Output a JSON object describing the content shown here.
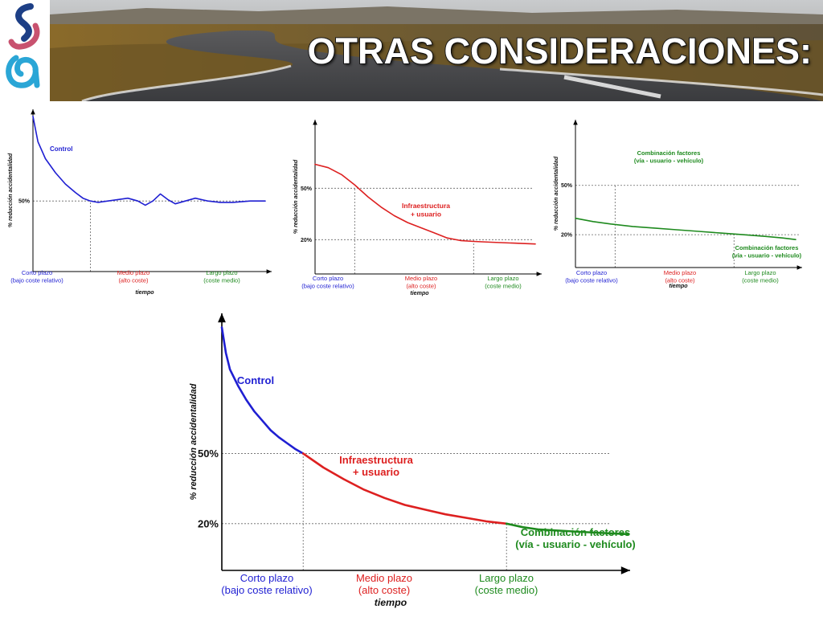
{
  "header": {
    "title": "OTRAS CONSIDERACIONES:",
    "logo_icon": "institution-logo-icon",
    "background": "road-landscape-photo"
  },
  "colors": {
    "blue": "#1f1fd2",
    "red": "#dd2020",
    "green": "#1e8a1e",
    "axis": "#000000",
    "grid": "#666666"
  },
  "chart_data": [
    {
      "type": "line",
      "ylabel": "% reducción accidentalidad",
      "xlabel": "tiempo",
      "yticks": [
        "50%"
      ],
      "categories": [
        {
          "lines": [
            "Corto plazo",
            "(bajo coste relativo)"
          ],
          "color": "blue"
        },
        {
          "lines": [
            "Medio plazo",
            "(alto coste)"
          ],
          "color": "red"
        },
        {
          "lines": [
            "Largo plazo",
            "(coste medio)"
          ],
          "color": "green"
        }
      ],
      "annotations": [
        {
          "lines": [
            "Control"
          ],
          "color": "blue"
        }
      ],
      "series": [
        {
          "name": "Control",
          "color": "blue",
          "points": [
            [
              0.0,
              1.1
            ],
            [
              0.02,
              0.92
            ],
            [
              0.05,
              0.8
            ],
            [
              0.09,
              0.7
            ],
            [
              0.13,
              0.62
            ],
            [
              0.17,
              0.56
            ],
            [
              0.2,
              0.52
            ],
            [
              0.23,
              0.5
            ],
            [
              0.26,
              0.49
            ],
            [
              0.3,
              0.5
            ],
            [
              0.34,
              0.51
            ],
            [
              0.38,
              0.52
            ],
            [
              0.42,
              0.5
            ],
            [
              0.45,
              0.47
            ],
            [
              0.48,
              0.5
            ],
            [
              0.51,
              0.55
            ],
            [
              0.54,
              0.51
            ],
            [
              0.57,
              0.48
            ],
            [
              0.61,
              0.5
            ],
            [
              0.65,
              0.52
            ],
            [
              0.7,
              0.5
            ],
            [
              0.75,
              0.49
            ],
            [
              0.8,
              0.49
            ],
            [
              0.87,
              0.5
            ],
            [
              0.93,
              0.5
            ]
          ]
        }
      ]
    },
    {
      "type": "line",
      "ylabel": "% reducción accidentalidad",
      "xlabel": "tiempo",
      "yticks": [
        "50%",
        "20%"
      ],
      "categories": [
        {
          "lines": [
            "Corto plazo",
            "(bajo coste relativo)"
          ],
          "color": "blue"
        },
        {
          "lines": [
            "Medio plazo",
            "(alto coste)"
          ],
          "color": "red"
        },
        {
          "lines": [
            "Largo plazo",
            "(coste medio)"
          ],
          "color": "green"
        }
      ],
      "annotations": [
        {
          "lines": [
            "Infraestructura",
            "+ usuario"
          ],
          "color": "red"
        }
      ],
      "series": [
        {
          "name": "Infraestructura + usuario",
          "color": "red",
          "points": [
            [
              0.0,
              0.64
            ],
            [
              0.06,
              0.62
            ],
            [
              0.12,
              0.58
            ],
            [
              0.18,
              0.52
            ],
            [
              0.24,
              0.45
            ],
            [
              0.3,
              0.39
            ],
            [
              0.36,
              0.34
            ],
            [
              0.42,
              0.3
            ],
            [
              0.48,
              0.27
            ],
            [
              0.54,
              0.24
            ],
            [
              0.6,
              0.21
            ],
            [
              0.66,
              0.195
            ],
            [
              0.72,
              0.19
            ],
            [
              0.8,
              0.185
            ],
            [
              0.9,
              0.18
            ],
            [
              1.0,
              0.175
            ]
          ]
        }
      ]
    },
    {
      "type": "line",
      "ylabel": "% reducción accidentalidad",
      "xlabel": "tiempo",
      "yticks": [
        "50%",
        "20%"
      ],
      "categories": [
        {
          "lines": [
            "Corto plazo",
            "(bajo coste relativo)"
          ],
          "color": "blue"
        },
        {
          "lines": [
            "Medio plazo",
            "(alto coste)"
          ],
          "color": "red"
        },
        {
          "lines": [
            "Largo plazo",
            "(coste medio)"
          ],
          "color": "green"
        }
      ],
      "annotations": [
        {
          "lines": [
            "Combinación factores",
            "(vía - usuario - vehículo)"
          ],
          "color": "green"
        },
        {
          "lines": [
            "Combinación factores",
            "(vía - usuario - vehículo)"
          ],
          "color": "green"
        }
      ],
      "series": [
        {
          "name": "Combinación factores",
          "color": "green",
          "points": [
            [
              0.0,
              0.3
            ],
            [
              0.08,
              0.28
            ],
            [
              0.16,
              0.265
            ],
            [
              0.26,
              0.25
            ],
            [
              0.36,
              0.24
            ],
            [
              0.46,
              0.23
            ],
            [
              0.56,
              0.22
            ],
            [
              0.66,
              0.21
            ],
            [
              0.76,
              0.2
            ],
            [
              0.86,
              0.19
            ],
            [
              0.94,
              0.18
            ],
            [
              1.0,
              0.17
            ]
          ]
        }
      ]
    },
    {
      "type": "line",
      "ylabel": "% reducción accidentalidad",
      "xlabel": "tiempo",
      "yticks": [
        "50%",
        "20%"
      ],
      "categories": [
        {
          "lines": [
            "Corto plazo",
            "(bajo coste relativo)"
          ],
          "color": "blue"
        },
        {
          "lines": [
            "Medio plazo",
            "(alto coste)"
          ],
          "color": "red"
        },
        {
          "lines": [
            "Largo plazo",
            "(coste medio)"
          ],
          "color": "green"
        }
      ],
      "annotations": [
        {
          "lines": [
            "Control"
          ],
          "color": "blue"
        },
        {
          "lines": [
            "Infraestructura",
            "+ usuario"
          ],
          "color": "red"
        },
        {
          "lines": [
            "Combinación factores",
            "(vía - usuario - vehículo)"
          ],
          "color": "green"
        }
      ],
      "series": [
        {
          "name": "Control",
          "color": "blue",
          "points": [
            [
              0.0,
              1.04
            ],
            [
              0.01,
              0.93
            ],
            [
              0.02,
              0.86
            ],
            [
              0.04,
              0.79
            ],
            [
              0.06,
              0.73
            ],
            [
              0.08,
              0.68
            ],
            [
              0.1,
              0.64
            ],
            [
              0.12,
              0.6
            ],
            [
              0.14,
              0.57
            ],
            [
              0.16,
              0.545
            ],
            [
              0.18,
              0.52
            ],
            [
              0.2,
              0.5
            ]
          ]
        },
        {
          "name": "Infraestructura + usuario",
          "color": "red",
          "points": [
            [
              0.2,
              0.5
            ],
            [
              0.25,
              0.44
            ],
            [
              0.3,
              0.39
            ],
            [
              0.35,
              0.345
            ],
            [
              0.4,
              0.31
            ],
            [
              0.45,
              0.28
            ],
            [
              0.5,
              0.26
            ],
            [
              0.55,
              0.24
            ],
            [
              0.6,
              0.225
            ],
            [
              0.65,
              0.21
            ],
            [
              0.7,
              0.2
            ]
          ]
        },
        {
          "name": "Combinación factores",
          "color": "green",
          "points": [
            [
              0.7,
              0.2
            ],
            [
              0.74,
              0.185
            ],
            [
              0.78,
              0.175
            ],
            [
              0.83,
              0.17
            ],
            [
              0.88,
              0.165
            ],
            [
              0.94,
              0.16
            ],
            [
              1.0,
              0.155
            ]
          ]
        }
      ]
    }
  ]
}
